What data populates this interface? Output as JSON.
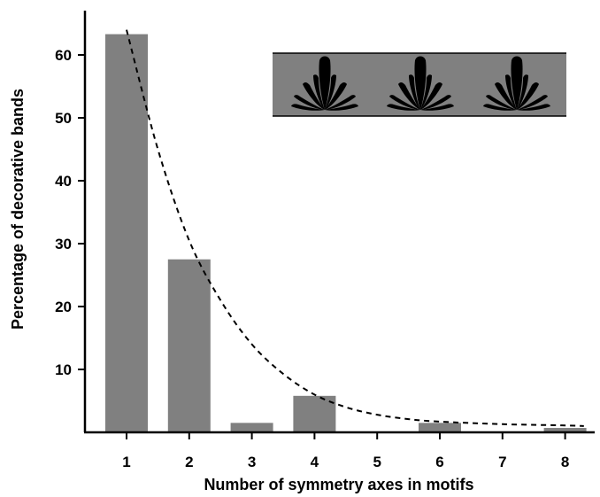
{
  "chart_data": {
    "type": "bar",
    "title": "",
    "xlabel": "Number of symmetry axes in motifs",
    "ylabel": "Percentage of decorative bands",
    "categories": [
      "1",
      "2",
      "3",
      "4",
      "5",
      "6",
      "7",
      "8"
    ],
    "values": [
      63.3,
      27.5,
      1.5,
      5.8,
      0,
      1.5,
      0,
      0.7
    ],
    "ylim": [
      0,
      67
    ],
    "yticks": [
      10,
      20,
      30,
      40,
      50,
      60
    ],
    "grid": false,
    "legend": "none",
    "trend_curve": {
      "style": "dashed",
      "points": [
        [
          1,
          64
        ],
        [
          1.5,
          45
        ],
        [
          2,
          30.5
        ],
        [
          2.5,
          21
        ],
        [
          3,
          14
        ],
        [
          3.5,
          9.3
        ],
        [
          4,
          6
        ],
        [
          4.5,
          4
        ],
        [
          5,
          2.8
        ],
        [
          5.5,
          2.1
        ],
        [
          6,
          1.7
        ],
        [
          7,
          1.3
        ],
        [
          8,
          1.1
        ],
        [
          8.3,
          1.0
        ]
      ]
    },
    "inset": {
      "description_icon": "fan-motif-frieze-icon",
      "motif_count": 3
    },
    "colors": {
      "bar": "#808080",
      "inset_background": "#808080",
      "motif": "#000000"
    }
  }
}
